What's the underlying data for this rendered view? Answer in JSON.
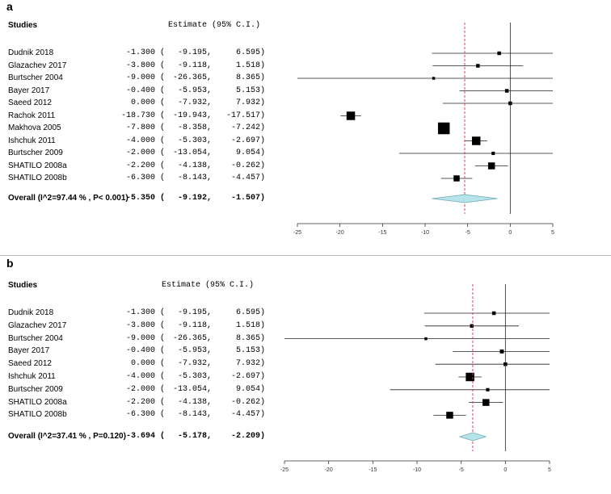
{
  "chart_data": [
    {
      "type": "forest",
      "panel_label": "a",
      "header": {
        "studies": "Studies",
        "estimate": "Estimate (95% C.I.)"
      },
      "studies": [
        {
          "name": "Dudnik 2018",
          "estimate": "-1.300",
          "lower": "-9.195",
          "upper": "6.595",
          "weight": 1
        },
        {
          "name": "Glazachev 2017",
          "estimate": "-3.800",
          "lower": "-9.118",
          "upper": "1.518",
          "weight": 1
        },
        {
          "name": "Burtscher 2004",
          "estimate": "-9.000",
          "lower": "-26.365",
          "upper": "8.365",
          "weight": 0.5
        },
        {
          "name": "Bayer 2017",
          "estimate": "-0.400",
          "lower": "-5.953",
          "upper": "5.153",
          "weight": 1
        },
        {
          "name": "Saeed 2012",
          "estimate": "0.000",
          "lower": "-7.932",
          "upper": "7.932",
          "weight": 1
        },
        {
          "name": "Rachok 2011",
          "estimate": "-18.730",
          "lower": "-19.943",
          "upper": "-17.517",
          "weight": 4
        },
        {
          "name": "Makhova 2005",
          "estimate": "-7.800",
          "lower": "-8.358",
          "upper": "-7.242",
          "weight": 6
        },
        {
          "name": "Ishchuk 2011",
          "estimate": "-4.000",
          "lower": "-5.303",
          "upper": "-2.697",
          "weight": 4
        },
        {
          "name": "Burtscher 2009",
          "estimate": "-2.000",
          "lower": "-13.054",
          "upper": "9.054",
          "weight": 0.8
        },
        {
          "name": "SHATILO 2008a",
          "estimate": "-2.200",
          "lower": "-4.138",
          "upper": "-0.262",
          "weight": 3
        },
        {
          "name": "SHATILO 2008b",
          "estimate": "-6.300",
          "lower": "-8.143",
          "upper": "-4.457",
          "weight": 2.5
        }
      ],
      "overall": {
        "label": "Overall (I^2=97.44 % , P< 0.001)",
        "estimate": "-5.350",
        "lower": "-9.192",
        "upper": "-1.507"
      },
      "xlim": [
        -25,
        5
      ],
      "xticks": [
        -25,
        -20,
        -15,
        -10,
        -5,
        0,
        5
      ],
      "reference_line": 0,
      "summary_line": -5.35,
      "colors": {
        "summary_fill": "#b7e3ea",
        "summary_stroke": "#6fa9b3",
        "summary_line": "#d6334a"
      }
    },
    {
      "type": "forest",
      "panel_label": "b",
      "header": {
        "studies": "Studies",
        "estimate": "Estimate (95% C.I.)"
      },
      "studies": [
        {
          "name": "Dudnik 2018",
          "estimate": "-1.300",
          "lower": "-9.195",
          "upper": "6.595",
          "weight": 1
        },
        {
          "name": "Glazachev 2017",
          "estimate": "-3.800",
          "lower": "-9.118",
          "upper": "1.518",
          "weight": 1
        },
        {
          "name": "Burtscher 2004",
          "estimate": "-9.000",
          "lower": "-26.365",
          "upper": "8.365",
          "weight": 0.5
        },
        {
          "name": "Bayer 2017",
          "estimate": "-0.400",
          "lower": "-5.953",
          "upper": "5.153",
          "weight": 1.2
        },
        {
          "name": "Saeed 2012",
          "estimate": "0.000",
          "lower": "-7.932",
          "upper": "7.932",
          "weight": 1
        },
        {
          "name": "Ishchuk 2011",
          "estimate": "-4.000",
          "lower": "-5.303",
          "upper": "-2.697",
          "weight": 4
        },
        {
          "name": "Burtscher 2009",
          "estimate": "-2.000",
          "lower": "-13.054",
          "upper": "9.054",
          "weight": 0.8
        },
        {
          "name": "SHATILO 2008a",
          "estimate": "-2.200",
          "lower": "-4.138",
          "upper": "-0.262",
          "weight": 3
        },
        {
          "name": "SHATILO 2008b",
          "estimate": "-6.300",
          "lower": "-8.143",
          "upper": "-4.457",
          "weight": 3
        }
      ],
      "overall": {
        "label": "Overall (I^2=37.41 % , P=0.120)",
        "estimate": "-3.694",
        "lower": "-5.178",
        "upper": "-2.209"
      },
      "xlim": [
        -25,
        5
      ],
      "xticks": [
        -25,
        -20,
        -15,
        -10,
        -5,
        0,
        5
      ],
      "reference_line": 0,
      "summary_line": -3.694,
      "colors": {
        "summary_fill": "#b7e3ea",
        "summary_stroke": "#6fa9b3",
        "summary_line": "#d6334a"
      }
    }
  ]
}
